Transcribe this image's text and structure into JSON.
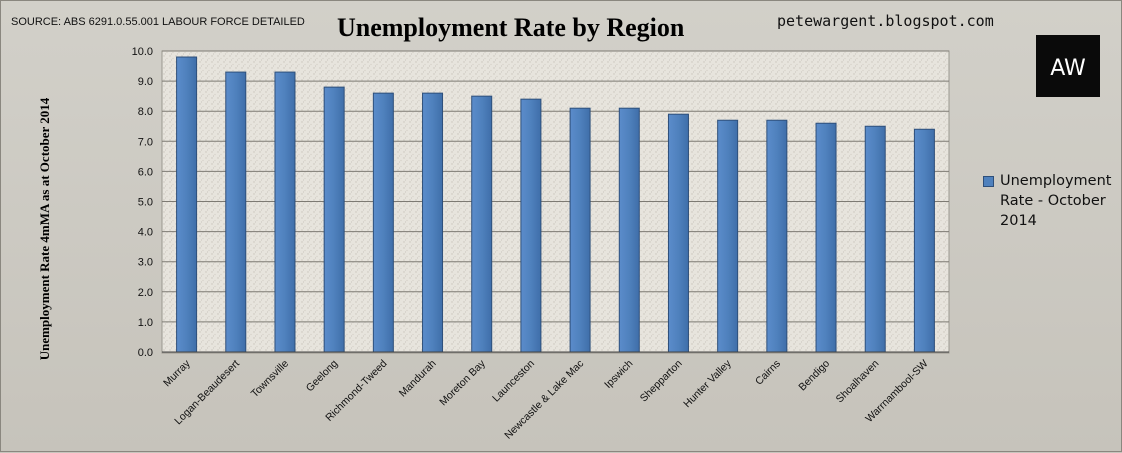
{
  "source_note": "SOURCE: ABS 6291.0.55.001 LABOUR FORCE DETAILED",
  "site_url": "petewargent.blogspot.com",
  "logo_text": "AW",
  "colors": {
    "bar": "#4f81bd",
    "bar_edge": "#2e4f7a",
    "plot_background": "#e6e3dc",
    "logo_background": "#0a0a0a",
    "logo_text": "#ffffff"
  },
  "chart_data": {
    "type": "bar",
    "title": "Unemployment Rate by Region",
    "xlabel": "",
    "ylabel": "Unemployment Rate 4mMA as at October 2014",
    "ylim": [
      0,
      10
    ],
    "yticks": [
      "0.0",
      "1.0",
      "2.0",
      "3.0",
      "4.0",
      "5.0",
      "6.0",
      "7.0",
      "8.0",
      "9.0",
      "10.0"
    ],
    "grid": true,
    "legend_position": "right",
    "categories": [
      "Murray",
      "Logan-Beaudesert",
      "Townsville",
      "Geelong",
      "Richmond-Tweed",
      "Mandurah",
      "Moreton Bay",
      "Launceston",
      "Newcastle & Lake Mac",
      "Ipswich",
      "Shepparton",
      "Hunter Valley",
      "Cairns",
      "Bendigo",
      "Shoalhaven",
      "Warrnambool-SW"
    ],
    "series": [
      {
        "name": "Unemployment Rate - October 2014",
        "values": [
          9.8,
          9.3,
          9.3,
          8.8,
          8.6,
          8.6,
          8.5,
          8.4,
          8.1,
          8.1,
          7.9,
          7.7,
          7.7,
          7.6,
          7.5,
          7.4
        ]
      }
    ]
  }
}
